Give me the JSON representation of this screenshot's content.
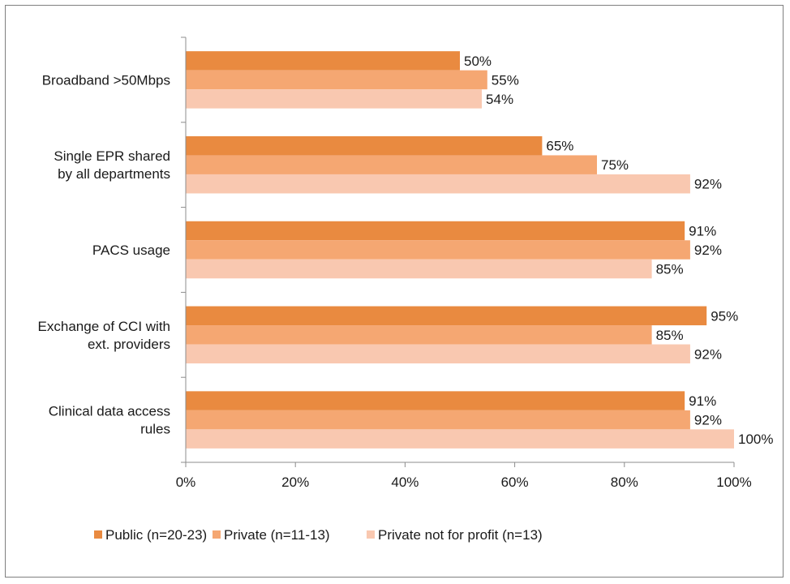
{
  "chart_data": {
    "type": "bar",
    "orientation": "horizontal",
    "categories": [
      "Broadband >50Mbps",
      "Single EPR shared by all departments",
      "PACS usage",
      "Exchange of CCI with ext. providers",
      "Clinical data access rules"
    ],
    "category_lines": [
      [
        "Broadband >50Mbps"
      ],
      [
        "Single EPR shared",
        "by all departments"
      ],
      [
        "PACS usage"
      ],
      [
        "Exchange of CCI with",
        "ext. providers"
      ],
      [
        "Clinical data access",
        "rules"
      ]
    ],
    "series": [
      {
        "name": "Public (n=20-23)",
        "color": "#e98a40",
        "values": [
          50,
          65,
          91,
          95,
          91
        ],
        "labels": [
          "50%",
          "65%",
          "91%",
          "95%",
          "91%"
        ]
      },
      {
        "name": "Private (n=11-13)",
        "color": "#f5a772",
        "values": [
          55,
          75,
          92,
          85,
          92
        ],
        "labels": [
          "55%",
          "75%",
          "92%",
          "85%",
          "92%"
        ]
      },
      {
        "name": "Private not for profit (n=13)",
        "color": "#f9c8b0",
        "values": [
          54,
          92,
          85,
          92,
          100
        ],
        "labels": [
          "54%",
          "92%",
          "85%",
          "92%",
          "100%"
        ]
      }
    ],
    "xlim": [
      0,
      100
    ],
    "xticks": [
      0,
      20,
      40,
      60,
      80,
      100
    ],
    "xtick_labels": [
      "0%",
      "20%",
      "40%",
      "60%",
      "80%",
      "100%"
    ],
    "title": "",
    "xlabel": "",
    "ylabel": "",
    "grid": false,
    "legend_position": "bottom"
  }
}
